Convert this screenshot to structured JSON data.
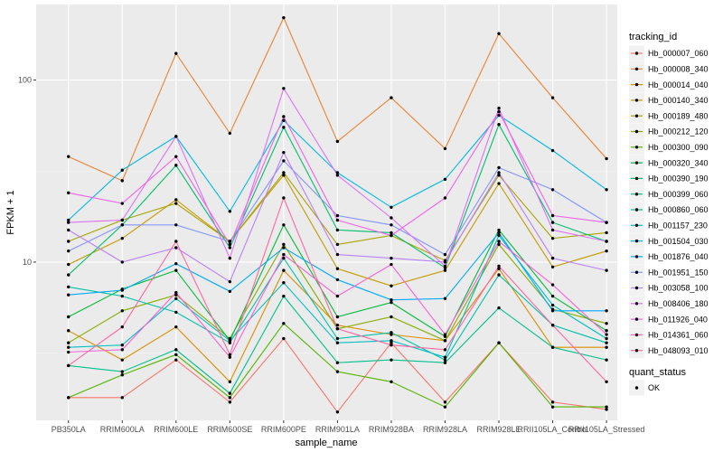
{
  "chart_data": {
    "type": "line",
    "xlabel": "sample_name",
    "ylabel": "FPKM + 1",
    "y_scale": "log10",
    "ylim": [
      1.35,
      260
    ],
    "y_ticks": [
      10,
      100
    ],
    "y_tick_labels": [
      "10",
      "100"
    ],
    "x": [
      "PB350LA",
      "RRIM600LA",
      "RRIM600LE",
      "RRIM600SE",
      "RRIM600PE",
      "RRIM901LA",
      "RRIM928BA",
      "RRIM928LA",
      "RRIM928LE",
      "RRII105LA_Control",
      "RRII105LA_Stressed"
    ],
    "legend": {
      "title": "tracking_id",
      "position": "right"
    },
    "shape_legend": {
      "title": "quant_status",
      "entries": [
        "OK"
      ]
    },
    "series": [
      {
        "name": "Hb_000007_060",
        "color": "#F8766D",
        "values": [
          1.8,
          1.8,
          2.9,
          1.7,
          3.8,
          1.5,
          3.6,
          1.7,
          3.6,
          1.7,
          1.55
        ]
      },
      {
        "name": "Hb_000008_340",
        "color": "#EB8335",
        "values": [
          38,
          28,
          140,
          51,
          220,
          46,
          80,
          42,
          180,
          80,
          37
        ]
      },
      {
        "name": "Hb_000014_040",
        "color": "#DA8F00",
        "values": [
          4.2,
          2.9,
          4.4,
          2.2,
          9.0,
          4.5,
          4.0,
          3.7,
          9.2,
          3.4,
          3.4
        ]
      },
      {
        "name": "Hb_000140_340",
        "color": "#C49A00",
        "values": [
          9.7,
          13.5,
          22.0,
          13.0,
          30.0,
          9.2,
          7.4,
          9.0,
          27.0,
          9.4,
          11.5
        ]
      },
      {
        "name": "Hb_000189_480",
        "color": "#A9A400",
        "values": [
          13.0,
          17.0,
          21.0,
          13.0,
          31.0,
          12.5,
          14.0,
          10.2,
          30.0,
          13.5,
          14.5
        ]
      },
      {
        "name": "Hb_000212_120",
        "color": "#86AC00",
        "values": [
          3.6,
          5.4,
          6.6,
          3.8,
          12.5,
          4.3,
          5.0,
          3.7,
          12.5,
          5.5,
          4.6
        ]
      },
      {
        "name": "Hb_000300_090",
        "color": "#53B400",
        "values": [
          1.8,
          2.4,
          3.1,
          1.8,
          4.6,
          2.5,
          2.2,
          1.6,
          3.6,
          1.6,
          1.6
        ]
      },
      {
        "name": "Hb_000320_340",
        "color": "#00BA38",
        "values": [
          5.0,
          7.1,
          9.0,
          3.7,
          16.0,
          5.0,
          6.0,
          3.9,
          15.0,
          6.5,
          4.2
        ]
      },
      {
        "name": "Hb_000390_190",
        "color": "#00BE6C",
        "values": [
          8.5,
          16.0,
          34.0,
          12.0,
          55.0,
          15.0,
          14.5,
          9.3,
          57.0,
          16.5,
          13.0
        ]
      },
      {
        "name": "Hb_000399_060",
        "color": "#00C08B",
        "values": [
          2.7,
          2.5,
          3.3,
          1.9,
          6.5,
          2.8,
          2.9,
          2.8,
          5.6,
          3.4,
          2.9
        ]
      },
      {
        "name": "Hb_000860_060",
        "color": "#00C1A7",
        "values": [
          7.3,
          6.5,
          5.3,
          3.6,
          10.5,
          3.8,
          4.1,
          2.9,
          8.5,
          4.5,
          3.6
        ]
      },
      {
        "name": "Hb_001157_230",
        "color": "#00BFC4",
        "values": [
          3.4,
          3.5,
          6.3,
          3.7,
          7.7,
          3.6,
          3.7,
          3.0,
          14.0,
          5.8,
          3.8
        ]
      },
      {
        "name": "Hb_001504_030",
        "color": "#00B8E7",
        "values": [
          17.0,
          32.0,
          49.0,
          19.0,
          60.0,
          31.0,
          20.0,
          28.5,
          64.0,
          41.0,
          25.0
        ]
      },
      {
        "name": "Hb_001876_040",
        "color": "#00A9FF",
        "values": [
          6.6,
          7.0,
          9.8,
          6.9,
          12.0,
          8.0,
          6.2,
          6.3,
          14.5,
          5.4,
          5.4
        ]
      },
      {
        "name": "Hb_001951_150",
        "color": "#8494FF",
        "values": [
          11.5,
          16.0,
          16.0,
          13.0,
          36.0,
          18.0,
          16.0,
          11.0,
          33.0,
          25.0,
          16.5
        ]
      },
      {
        "name": "Hb_003058_100",
        "color": "#BB81F7",
        "values": [
          15.0,
          10.0,
          12.0,
          7.8,
          40.0,
          11.0,
          10.5,
          10.0,
          31.0,
          10.5,
          9.0
        ]
      },
      {
        "name": "Hb_008406_180",
        "color": "#DC71FA",
        "values": [
          16.5,
          17.0,
          49.0,
          10.5,
          90.0,
          30.0,
          17.5,
          9.5,
          70.0,
          15.0,
          13.0
        ]
      },
      {
        "name": "Hb_011926_040",
        "color": "#F063EA",
        "values": [
          24.0,
          21.0,
          38.0,
          12.5,
          63.0,
          17.0,
          14.0,
          22.5,
          67.0,
          18.0,
          16.5
        ]
      },
      {
        "name": "Hb_014361_060",
        "color": "#FB61D7",
        "values": [
          3.2,
          3.3,
          6.8,
          3.0,
          11.0,
          6.5,
          9.7,
          4.0,
          13.0,
          7.5,
          4.0
        ]
      },
      {
        "name": "Hb_048093_010",
        "color": "#FF67A4",
        "values": [
          2.7,
          4.4,
          13.0,
          3.1,
          22.5,
          4.3,
          3.5,
          3.3,
          9.5,
          4.5,
          2.2
        ]
      }
    ]
  }
}
